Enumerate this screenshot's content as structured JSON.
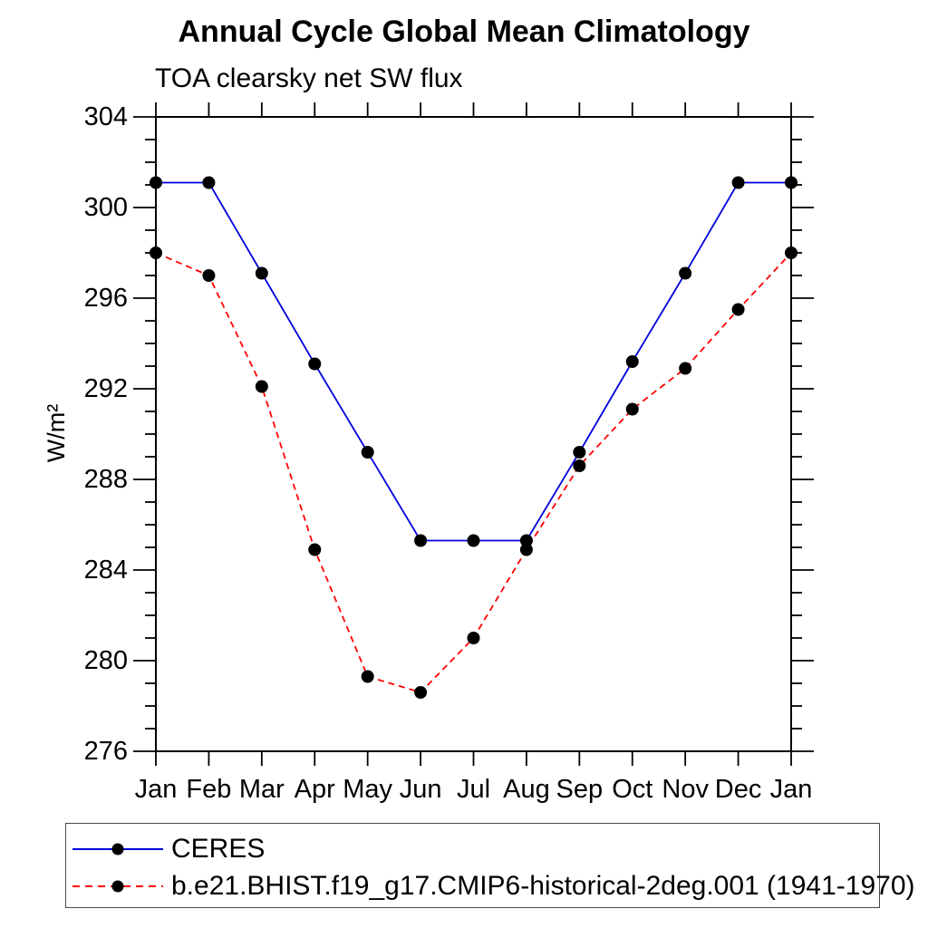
{
  "chart_data": {
    "type": "line",
    "title": "Annual Cycle Global Mean Climatology",
    "subtitle": "TOA clearsky net SW flux",
    "ylabel": "W/m²",
    "xlabel": "",
    "categories": [
      "Jan",
      "Feb",
      "Mar",
      "Apr",
      "May",
      "Jun",
      "Jul",
      "Aug",
      "Sep",
      "Oct",
      "Nov",
      "Dec",
      "Jan"
    ],
    "ylim": [
      276,
      304
    ],
    "ytick_major": [
      276,
      280,
      284,
      288,
      292,
      296,
      300,
      304
    ],
    "ytick_minor_step": 1,
    "grid": false,
    "legend_position": "bottom-left-box",
    "axis_color": "#000000",
    "marker_color": "#000000",
    "series": [
      {
        "name": "CERES",
        "color": "#0000dd",
        "style": "solid",
        "marker": "circle",
        "values": [
          301.1,
          301.1,
          297.1,
          293.1,
          289.2,
          285.3,
          285.3,
          285.3,
          289.2,
          293.2,
          297.1,
          301.1,
          301.1
        ]
      },
      {
        "name": "b.e21.BHIST.f19_g17.CMIP6-historical-2deg.001 (1941-1970)",
        "color": "#ff0000",
        "style": "dashed",
        "marker": "circle",
        "values": [
          298.0,
          297.0,
          292.1,
          284.9,
          279.3,
          278.6,
          281.0,
          284.9,
          288.6,
          291.1,
          292.9,
          295.5,
          298.0
        ]
      }
    ]
  }
}
